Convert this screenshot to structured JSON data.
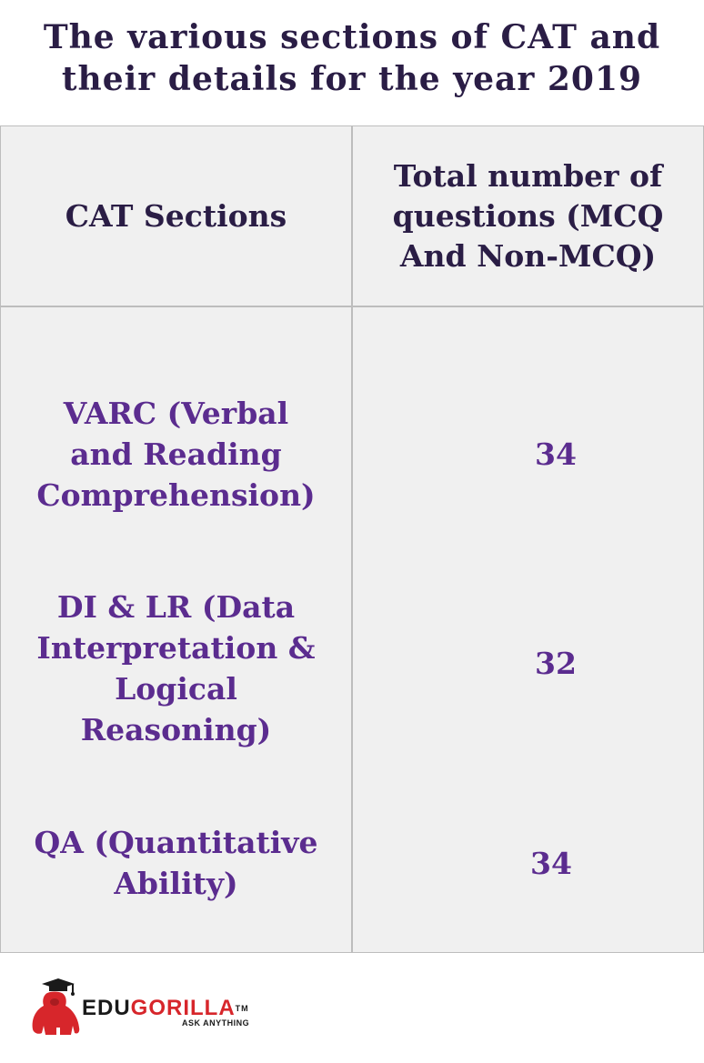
{
  "title": {
    "line1": "The various sections of CAT and",
    "line2": "their details for the year 2019"
  },
  "table": {
    "headers": {
      "section": "CAT Sections",
      "questions": [
        "Total number of",
        "questions (MCQ",
        "And Non-MCQ)"
      ]
    },
    "rows": [
      {
        "section": [
          "VARC (Verbal",
          "and Reading",
          "Comprehension)"
        ],
        "questions": "34"
      },
      {
        "section": [
          "DI & LR (Data",
          "Interpretation &",
          "Logical",
          "Reasoning)"
        ],
        "questions": "32"
      },
      {
        "section": [
          "QA (Quantitative",
          "Ability)"
        ],
        "questions": "34"
      }
    ]
  },
  "logo": {
    "brand_part1": "EDU",
    "brand_part2": "GORILLA",
    "trademark": "TM",
    "tagline": "ASK ANYTHING",
    "icon": "gorilla-graduation-cap-icon",
    "colors": {
      "red": "#d7262b",
      "black": "#1a1a1a"
    }
  },
  "colors": {
    "title": "#2a1d45",
    "body_text": "#5b2c8f",
    "table_bg": "#f0f0f0",
    "border": "#bdbdbd"
  }
}
